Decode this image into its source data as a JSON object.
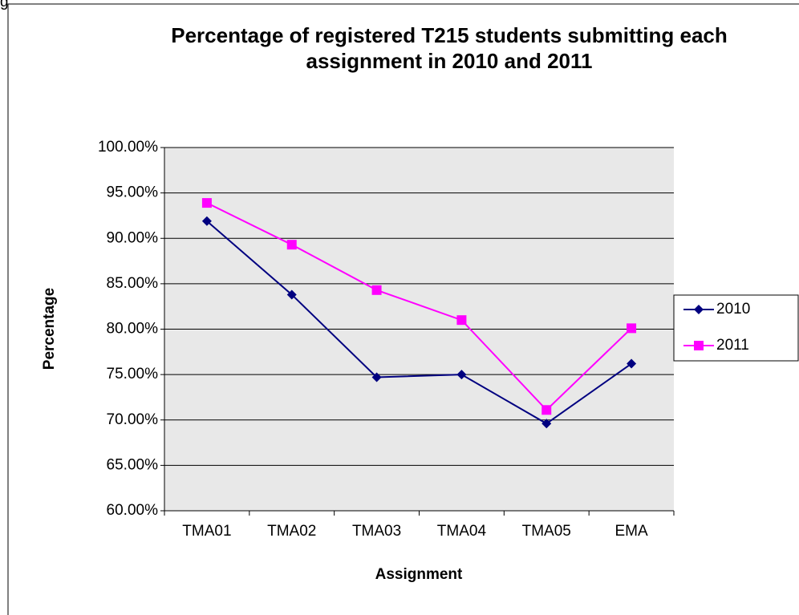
{
  "caption_fragment": "g",
  "chart_data": {
    "type": "line",
    "title": "Percentage of registered T215 students submitting each assignment in 2010 and 2011",
    "x_label": "Assignment",
    "y_label": "Percentage",
    "categories": [
      "TMA01",
      "TMA02",
      "TMA03",
      "TMA04",
      "TMA05",
      "EMA"
    ],
    "series": [
      {
        "name": "2010",
        "color": "#000080",
        "marker": "diamond",
        "values": [
          91.9,
          83.8,
          74.7,
          75.0,
          69.6,
          76.2
        ]
      },
      {
        "name": "2011",
        "color": "#ff00ff",
        "marker": "square",
        "values": [
          93.9,
          89.3,
          84.3,
          81.0,
          71.1,
          80.1
        ]
      }
    ],
    "ylim": [
      60,
      100
    ],
    "yticks": [
      {
        "value": 60,
        "label": "60.00%"
      },
      {
        "value": 65,
        "label": "65.00%"
      },
      {
        "value": 70,
        "label": "70.00%"
      },
      {
        "value": 75,
        "label": "75.00%"
      },
      {
        "value": 80,
        "label": "80.00%"
      },
      {
        "value": 85,
        "label": "85.00%"
      },
      {
        "value": 90,
        "label": "90.00%"
      },
      {
        "value": 95,
        "label": "95.00%"
      },
      {
        "value": 100,
        "label": "100.00%"
      }
    ],
    "grid": true,
    "legend": "right"
  }
}
